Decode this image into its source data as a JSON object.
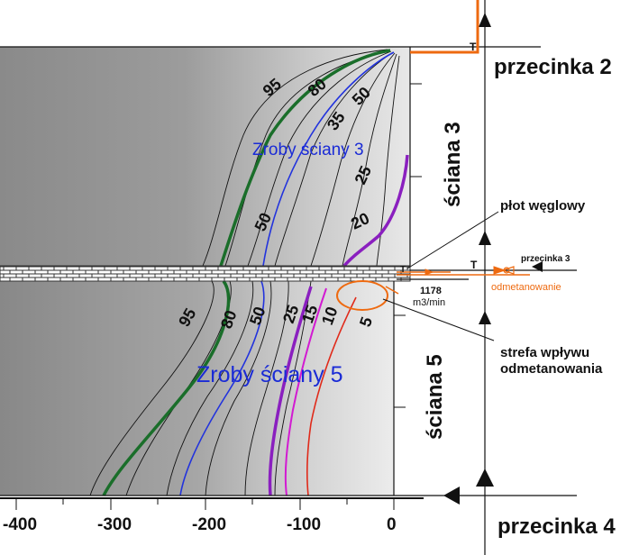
{
  "labels": {
    "przecinka2": "przecinka 2",
    "przecinka3": "przecinka 3",
    "przecinka4": "przecinka 4",
    "sciana3": "ściana 3",
    "sciana5": "ściana 5",
    "zroby3": "Zroby ściany 3",
    "zroby5": "Zroby ściany 5",
    "plot": "płot węglowy",
    "strefa_line1": "strefa wpływu",
    "strefa_line2": "odmetanowania",
    "odmetanowanie": "odmetanowanie",
    "flow_value": "1178",
    "flow_unit": "m3/min",
    "t_marker": "T"
  },
  "axis": {
    "ticks": [
      "-400",
      "-300",
      "-200",
      "-100",
      "0"
    ]
  },
  "contours_upper": [
    "95",
    "80",
    "50",
    "35",
    "25",
    "20",
    "50"
  ],
  "contours_lower": [
    "95",
    "80",
    "50",
    "25",
    "15",
    "10",
    "5"
  ],
  "colors": {
    "orange": "#ee6a10",
    "green": "#1a6e2a",
    "blue": "#2233dd",
    "purple": "#8a1fbf",
    "magenta": "#d21ad2",
    "red": "#e02a1a",
    "dark_gray": "#8e8e8e",
    "light_gray": "#dcdcdc",
    "label_blue": "#1a2bd6"
  }
}
